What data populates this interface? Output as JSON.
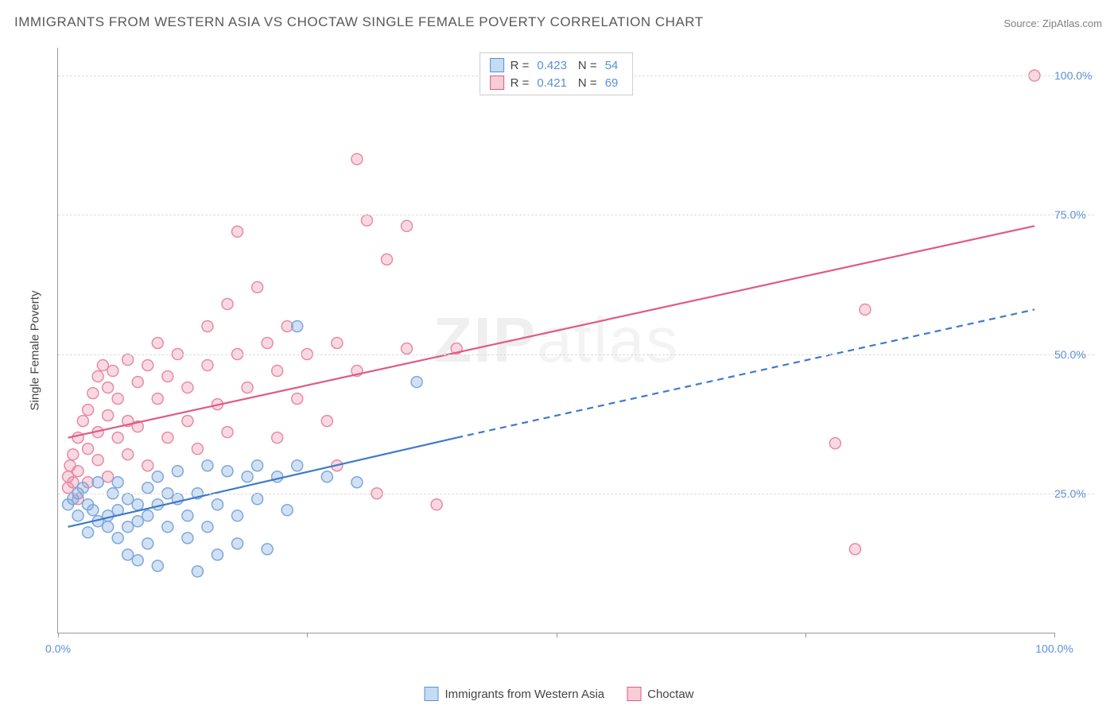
{
  "title": "IMMIGRANTS FROM WESTERN ASIA VS CHOCTAW SINGLE FEMALE POVERTY CORRELATION CHART",
  "source_label": "Source:",
  "source_site": "ZipAtlas.com",
  "ylabel": "Single Female Poverty",
  "watermark_a": "ZIP",
  "watermark_b": "atlas",
  "chart": {
    "type": "scatter",
    "background_color": "#ffffff",
    "grid_color": "#dddddd",
    "axis_color": "#999999",
    "label_color": "#5b8fd6",
    "xlim": [
      0,
      100
    ],
    "ylim": [
      0,
      105
    ],
    "ytick_positions": [
      25,
      50,
      75,
      100
    ],
    "ytick_labels": [
      "25.0%",
      "50.0%",
      "75.0%",
      "100.0%"
    ],
    "xtick_positions": [
      0,
      50,
      100
    ],
    "xtick_labels": [
      "0.0%",
      "",
      "100.0%"
    ],
    "xtick_minor": [
      25,
      75
    ],
    "marker_radius": 7,
    "marker_stroke_width": 1.5,
    "line_width": 2.2
  },
  "legend_top": {
    "rows": [
      {
        "swatch_fill": "#c4dbf2",
        "swatch_border": "#5b8fd6",
        "r_label": "R =",
        "r_value": "0.423",
        "n_label": "N =",
        "n_value": "54"
      },
      {
        "swatch_fill": "#f7cdd8",
        "swatch_border": "#e05a85",
        "r_label": "R =",
        "r_value": "0.421",
        "n_label": "N =",
        "n_value": "69"
      }
    ]
  },
  "legend_bottom": {
    "items": [
      {
        "label": "Immigrants from Western Asia",
        "swatch_fill": "#c4dbf2",
        "swatch_border": "#5b8fd6"
      },
      {
        "label": "Choctaw",
        "swatch_fill": "#f7cdd8",
        "swatch_border": "#e05a85"
      }
    ]
  },
  "series": {
    "blue": {
      "name": "Immigrants from Western Asia",
      "fill": "rgba(123,168,222,0.35)",
      "stroke": "#7ba8de",
      "trend": {
        "x1": 1,
        "y1": 19,
        "x2_solid": 40,
        "y2_solid": 35,
        "x2_dash": 98,
        "y2_dash": 58,
        "color": "#3f7acb"
      },
      "points": [
        [
          1,
          23
        ],
        [
          1.5,
          24
        ],
        [
          2,
          25
        ],
        [
          2,
          21
        ],
        [
          2.5,
          26
        ],
        [
          3,
          23
        ],
        [
          3,
          18
        ],
        [
          3.5,
          22
        ],
        [
          4,
          20
        ],
        [
          4,
          27
        ],
        [
          5,
          21
        ],
        [
          5,
          19
        ],
        [
          5.5,
          25
        ],
        [
          6,
          22
        ],
        [
          6,
          27
        ],
        [
          6,
          17
        ],
        [
          7,
          19
        ],
        [
          7,
          24
        ],
        [
          7,
          14
        ],
        [
          8,
          23
        ],
        [
          8,
          20
        ],
        [
          8,
          13
        ],
        [
          9,
          26
        ],
        [
          9,
          21
        ],
        [
          9,
          16
        ],
        [
          10,
          23
        ],
        [
          10,
          28
        ],
        [
          10,
          12
        ],
        [
          11,
          25
        ],
        [
          11,
          19
        ],
        [
          12,
          24
        ],
        [
          12,
          29
        ],
        [
          13,
          21
        ],
        [
          13,
          17
        ],
        [
          14,
          11
        ],
        [
          14,
          25
        ],
        [
          15,
          30
        ],
        [
          15,
          19
        ],
        [
          16,
          23
        ],
        [
          16,
          14
        ],
        [
          17,
          29
        ],
        [
          18,
          21
        ],
        [
          18,
          16
        ],
        [
          19,
          28
        ],
        [
          20,
          30
        ],
        [
          20,
          24
        ],
        [
          21,
          15
        ],
        [
          22,
          28
        ],
        [
          23,
          22
        ],
        [
          24,
          30
        ],
        [
          24,
          55
        ],
        [
          27,
          28
        ],
        [
          30,
          27
        ],
        [
          36,
          45
        ]
      ]
    },
    "pink": {
      "name": "Choctaw",
      "fill": "rgba(233,128,160,0.30)",
      "stroke": "#e88aa5",
      "trend": {
        "x1": 1,
        "y1": 35,
        "x2_solid": 98,
        "y2_solid": 73,
        "color": "#e05a85"
      },
      "points": [
        [
          1,
          26
        ],
        [
          1,
          28
        ],
        [
          1.2,
          30
        ],
        [
          1.5,
          32
        ],
        [
          1.5,
          27
        ],
        [
          2,
          35
        ],
        [
          2,
          29
        ],
        [
          2,
          24
        ],
        [
          2.5,
          38
        ],
        [
          3,
          33
        ],
        [
          3,
          40
        ],
        [
          3,
          27
        ],
        [
          3.5,
          43
        ],
        [
          4,
          36
        ],
        [
          4,
          46
        ],
        [
          4,
          31
        ],
        [
          4.5,
          48
        ],
        [
          5,
          39
        ],
        [
          5,
          44
        ],
        [
          5,
          28
        ],
        [
          5.5,
          47
        ],
        [
          6,
          35
        ],
        [
          6,
          42
        ],
        [
          7,
          38
        ],
        [
          7,
          49
        ],
        [
          7,
          32
        ],
        [
          8,
          45
        ],
        [
          8,
          37
        ],
        [
          9,
          30
        ],
        [
          9,
          48
        ],
        [
          10,
          42
        ],
        [
          10,
          52
        ],
        [
          11,
          35
        ],
        [
          11,
          46
        ],
        [
          12,
          50
        ],
        [
          13,
          38
        ],
        [
          13,
          44
        ],
        [
          14,
          33
        ],
        [
          15,
          48
        ],
        [
          15,
          55
        ],
        [
          16,
          41
        ],
        [
          17,
          36
        ],
        [
          17,
          59
        ],
        [
          18,
          50
        ],
        [
          18,
          72
        ],
        [
          19,
          44
        ],
        [
          20,
          62
        ],
        [
          21,
          52
        ],
        [
          22,
          35
        ],
        [
          22,
          47
        ],
        [
          23,
          55
        ],
        [
          24,
          42
        ],
        [
          25,
          50
        ],
        [
          27,
          38
        ],
        [
          28,
          30
        ],
        [
          28,
          52
        ],
        [
          30,
          47
        ],
        [
          30,
          85
        ],
        [
          31,
          74
        ],
        [
          32,
          25
        ],
        [
          33,
          67
        ],
        [
          35,
          73
        ],
        [
          35,
          51
        ],
        [
          38,
          23
        ],
        [
          40,
          51
        ],
        [
          78,
          34
        ],
        [
          80,
          15
        ],
        [
          81,
          58
        ],
        [
          98,
          100
        ]
      ]
    }
  }
}
